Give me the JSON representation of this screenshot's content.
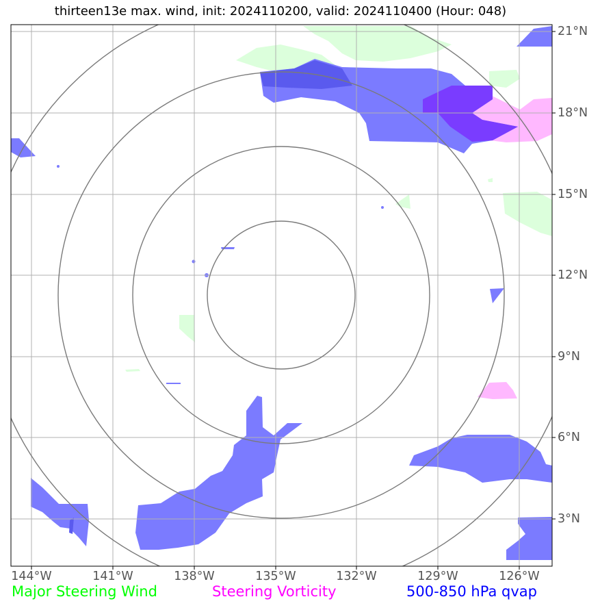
{
  "title": "thirteen13e max. wind, init: 2024110200, valid: 2024110400 (Hour: 048)",
  "longitude_labels": [
    "144°W",
    "141°W",
    "138°W",
    "135°W",
    "132°W",
    "129°W",
    "126°W"
  ],
  "latitude_labels": [
    "21°N",
    "18°N",
    "15°N",
    "12°N",
    "9°N",
    "6°N",
    "3°N"
  ],
  "legend": {
    "wind": {
      "label": "Major Steering Wind",
      "color": "#00ff00"
    },
    "vorticity": {
      "label": "Steering Vorticity",
      "color": "#ff00ff"
    },
    "qvap": {
      "label": "500-850 hPa qvap",
      "color": "#0000ff"
    }
  },
  "colors": {
    "qvap_fill": "#7b7bff",
    "qvap_dark": "#5a5aee",
    "vorticity_fill": "#ffb8ff",
    "vorticity_core": "#7a3cff",
    "wind_fill": "#dcffdc",
    "grid": "#b0b0b0",
    "range_rings": "#7a7a7a"
  }
}
